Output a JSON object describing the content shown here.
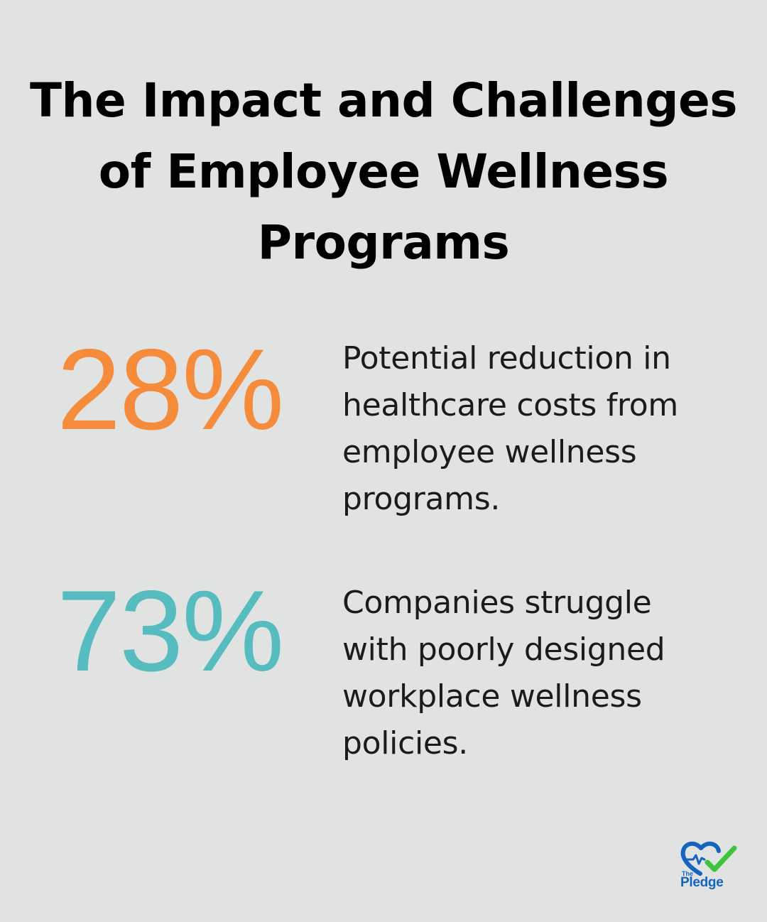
{
  "title": {
    "line1": "The Impact and Challenges",
    "line2": "of Employee Wellness",
    "line3": "Programs"
  },
  "stats": [
    {
      "value": "28%",
      "color": "#f58c3c",
      "desc_lines": [
        "Potential reduction in",
        "healthcare costs from",
        "employee wellness",
        "programs."
      ]
    },
    {
      "value": "73%",
      "color": "#56bcbf",
      "desc_lines": [
        "Companies struggle",
        "with poorly designed",
        "workplace wellness",
        "policies."
      ]
    }
  ],
  "logo": {
    "small_text": "The",
    "brand_text": "Pledge",
    "icon": "heart-check-icon"
  }
}
